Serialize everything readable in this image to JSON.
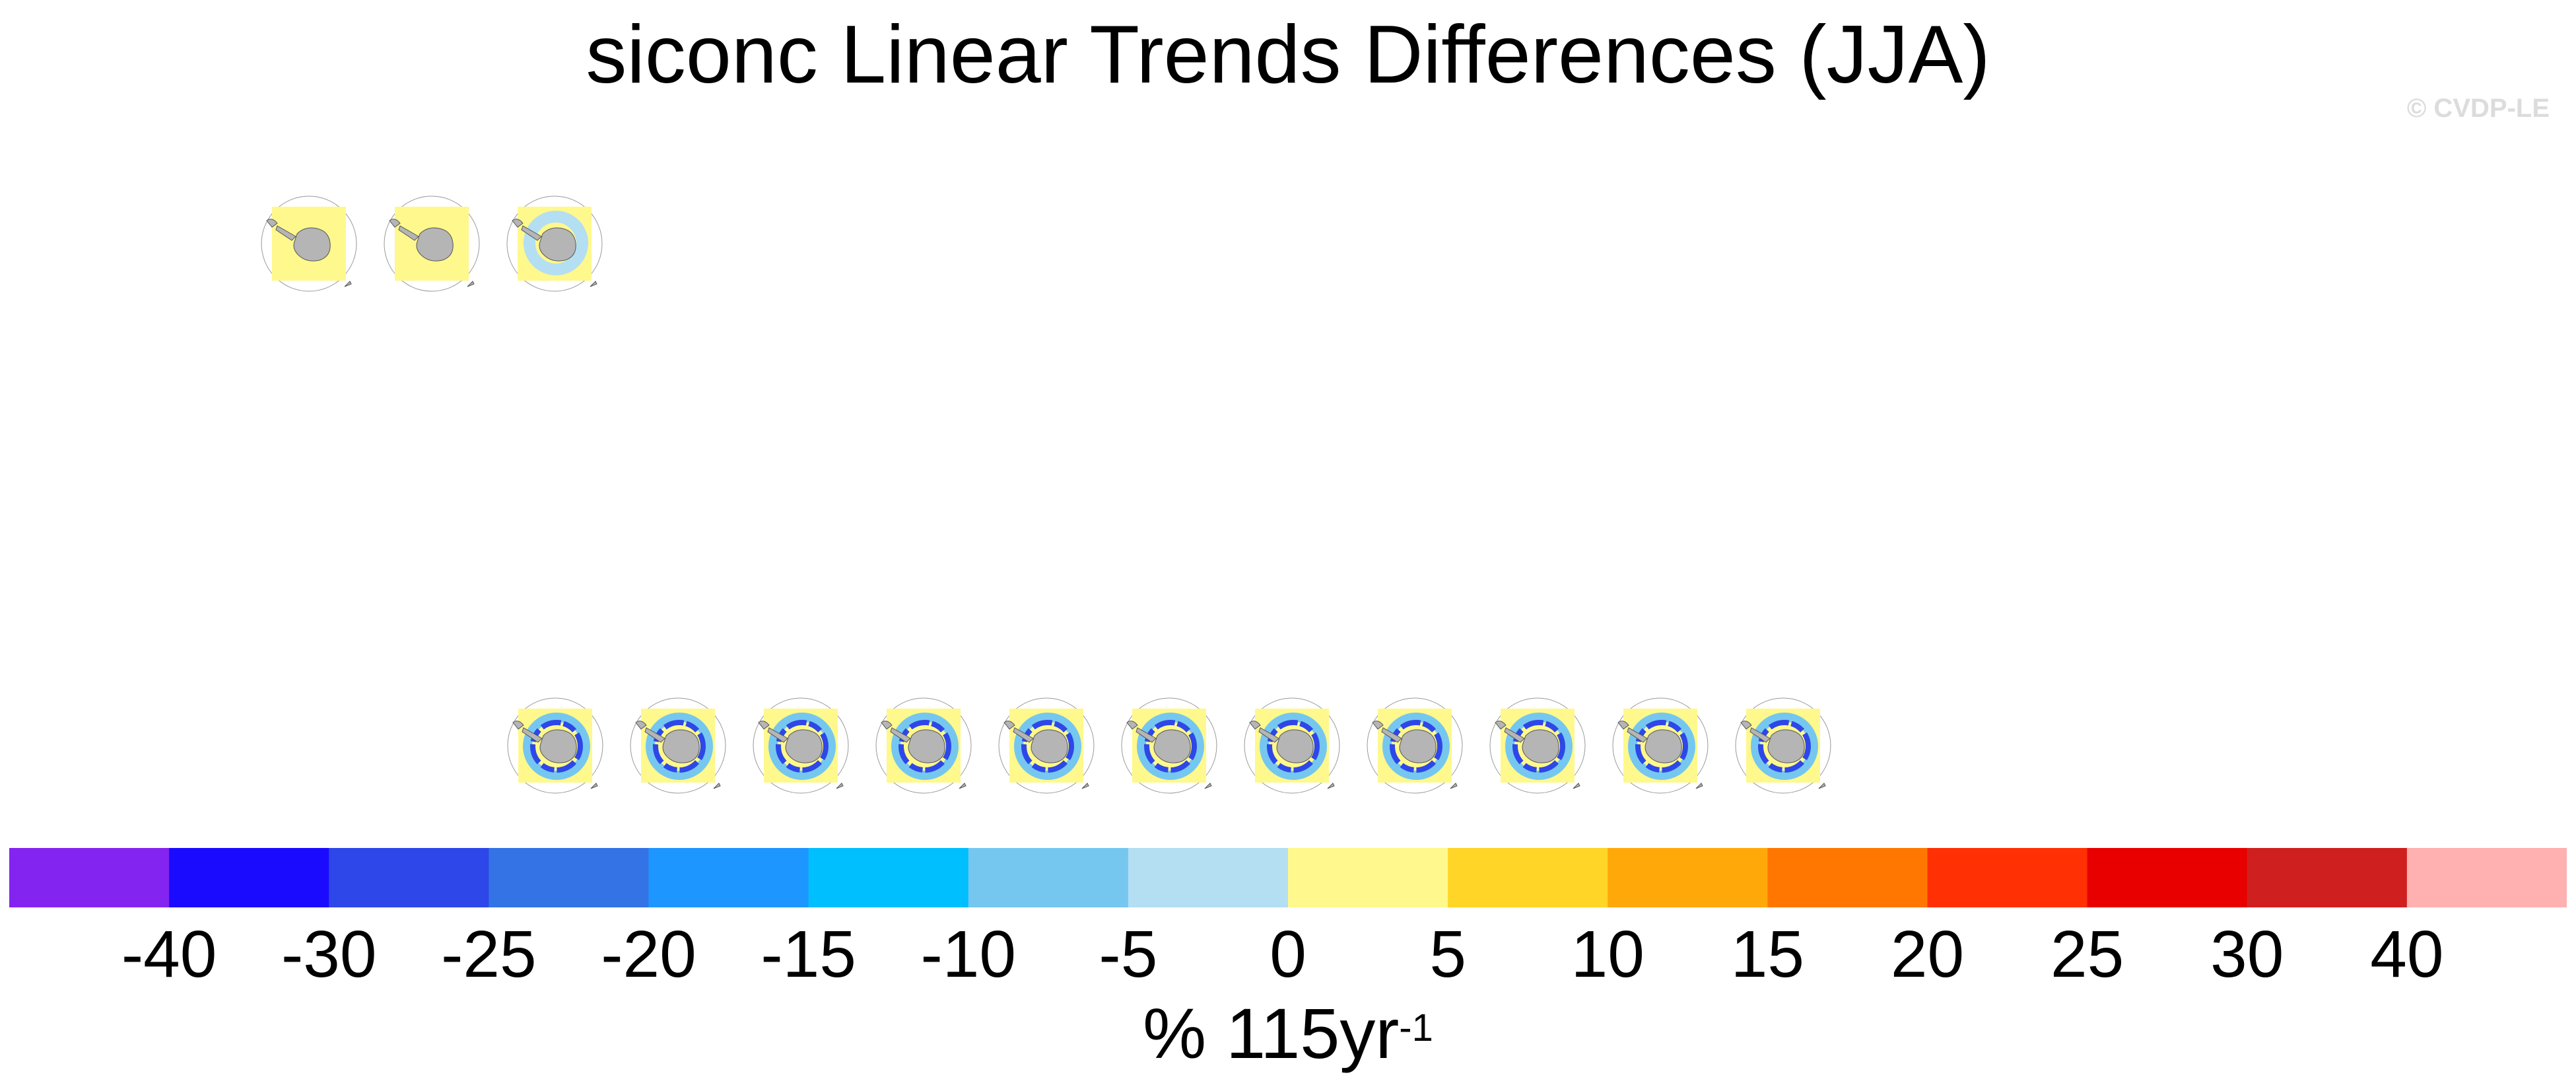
{
  "title": "siconc Linear Trends Differences (JJA)",
  "watermark": "© CVDP-LE",
  "colorbar": {
    "colors": [
      "#8424f0",
      "#1a0bff",
      "#2e47e8",
      "#3373e6",
      "#1e96ff",
      "#00bfff",
      "#75c7f0",
      "#b4def2",
      "#fff88c",
      "#ffd528",
      "#ffa80a",
      "#ff7700",
      "#ff3004",
      "#e80000",
      "#d01f1f",
      "#ffb0b0"
    ],
    "ticks": [
      "-40",
      "-30",
      "-25",
      "-20",
      "-15",
      "-10",
      "-5",
      "0",
      "5",
      "10",
      "15",
      "20",
      "25",
      "30",
      "40"
    ],
    "units_main": "% 115yr",
    "units_sup": "-1"
  },
  "panels": {
    "row1": [
      {
        "style": "obs"
      },
      {
        "style": "obs"
      },
      {
        "style": "obs-light"
      }
    ],
    "row2": [
      {
        "style": "model"
      },
      {
        "style": "model"
      },
      {
        "style": "model"
      },
      {
        "style": "model"
      },
      {
        "style": "model"
      },
      {
        "style": "model"
      },
      {
        "style": "model"
      },
      {
        "style": "model"
      },
      {
        "style": "model"
      },
      {
        "style": "model"
      },
      {
        "style": "model"
      }
    ]
  }
}
